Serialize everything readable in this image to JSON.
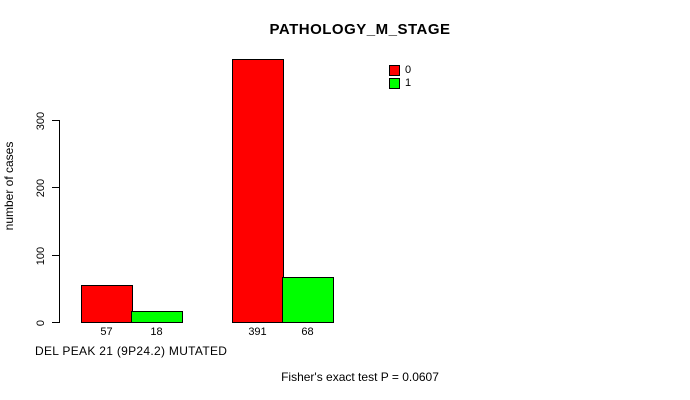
{
  "chart_data": {
    "type": "bar",
    "title": "PATHOLOGY_M_STAGE",
    "ylabel": "number of cases",
    "xlabel": "DEL PEAK 21 (9P24.2) MUTATED",
    "annotation": "Fisher's exact test P = 0.0607",
    "ylim": [
      0,
      300
    ],
    "yticks": [
      0,
      100,
      200,
      300
    ],
    "series": [
      {
        "name": "0",
        "color": "#ff0000",
        "values": [
          57,
          391
        ]
      },
      {
        "name": "1",
        "color": "#00ff00",
        "values": [
          18,
          68
        ]
      }
    ],
    "bar_value_labels": [
      [
        "57",
        "18"
      ],
      [
        "391",
        "68"
      ]
    ],
    "legend_position": "top-right",
    "grid": false
  }
}
